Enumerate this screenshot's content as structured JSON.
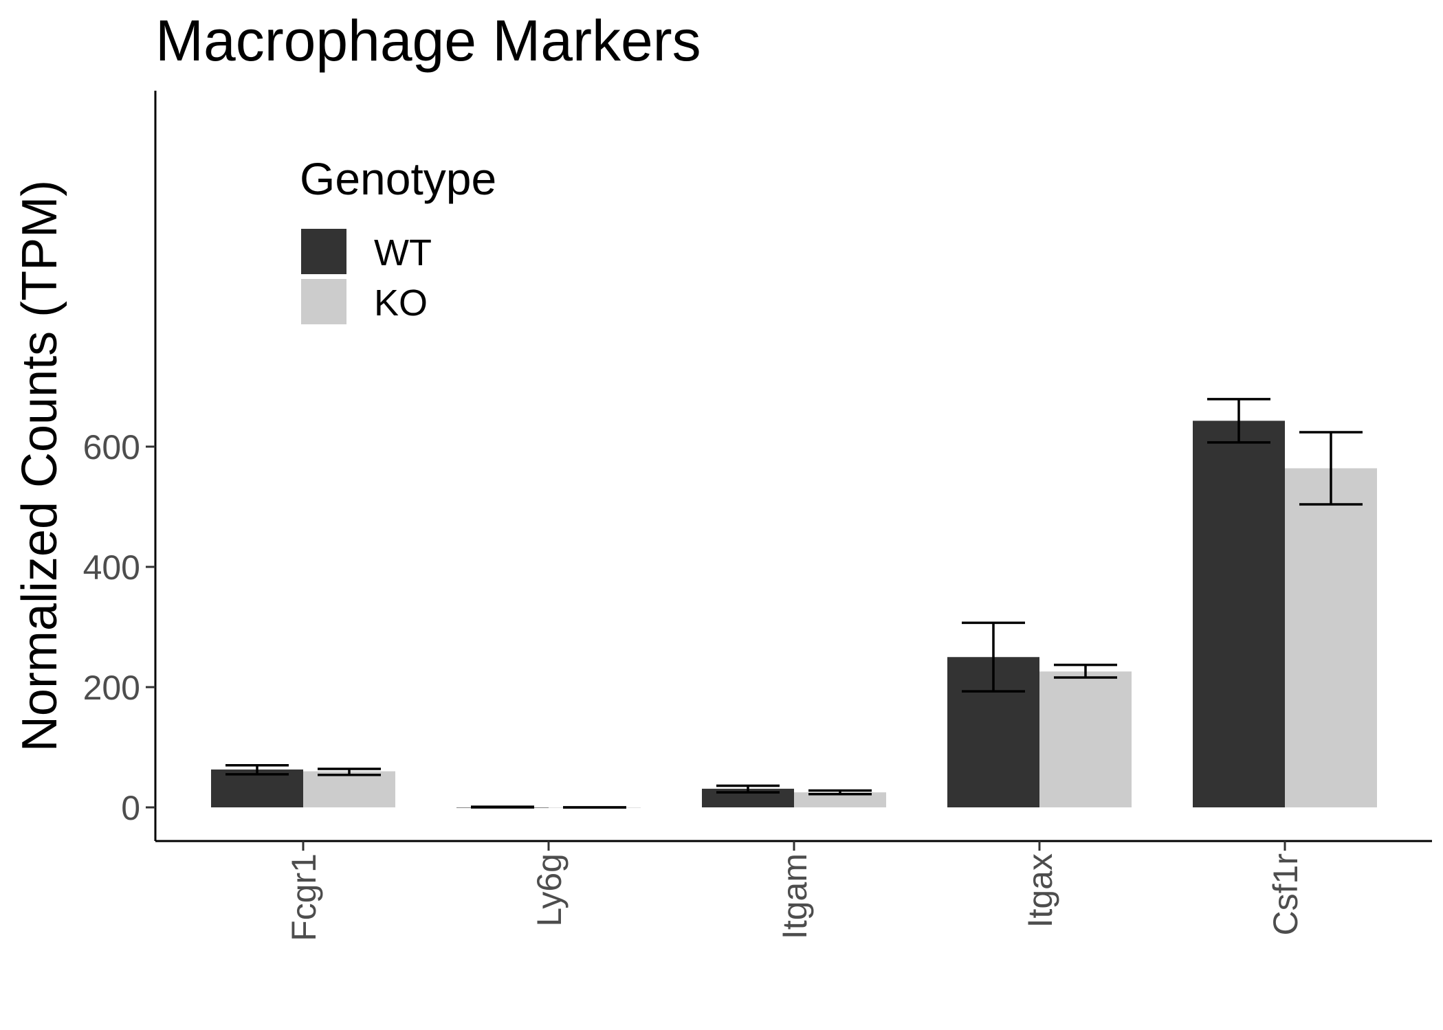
{
  "chart_data": {
    "type": "bar",
    "title": "Macrophage Markers",
    "xlabel": "",
    "ylabel": "Normalized Counts (TPM)",
    "ylim": [
      -33,
      700
    ],
    "yticks": [
      0,
      200,
      400,
      600
    ],
    "categories": [
      "Fcgr1",
      "Ly6g",
      "Itgam",
      "Itgax",
      "Csf1r"
    ],
    "legend": {
      "title": "Genotype",
      "position": "top-left"
    },
    "series": [
      {
        "name": "WT",
        "color": "#333333",
        "values": [
          63,
          0,
          31,
          250,
          643
        ],
        "error_low": [
          55,
          0,
          25,
          193,
          607
        ],
        "error_high": [
          70,
          1,
          36,
          307,
          679
        ]
      },
      {
        "name": "KO",
        "color": "#cccccc",
        "values": [
          60,
          0,
          25,
          226,
          564
        ],
        "error_low": [
          54,
          0,
          22,
          216,
          504
        ],
        "error_high": [
          64,
          0,
          28,
          237,
          624
        ]
      }
    ]
  }
}
